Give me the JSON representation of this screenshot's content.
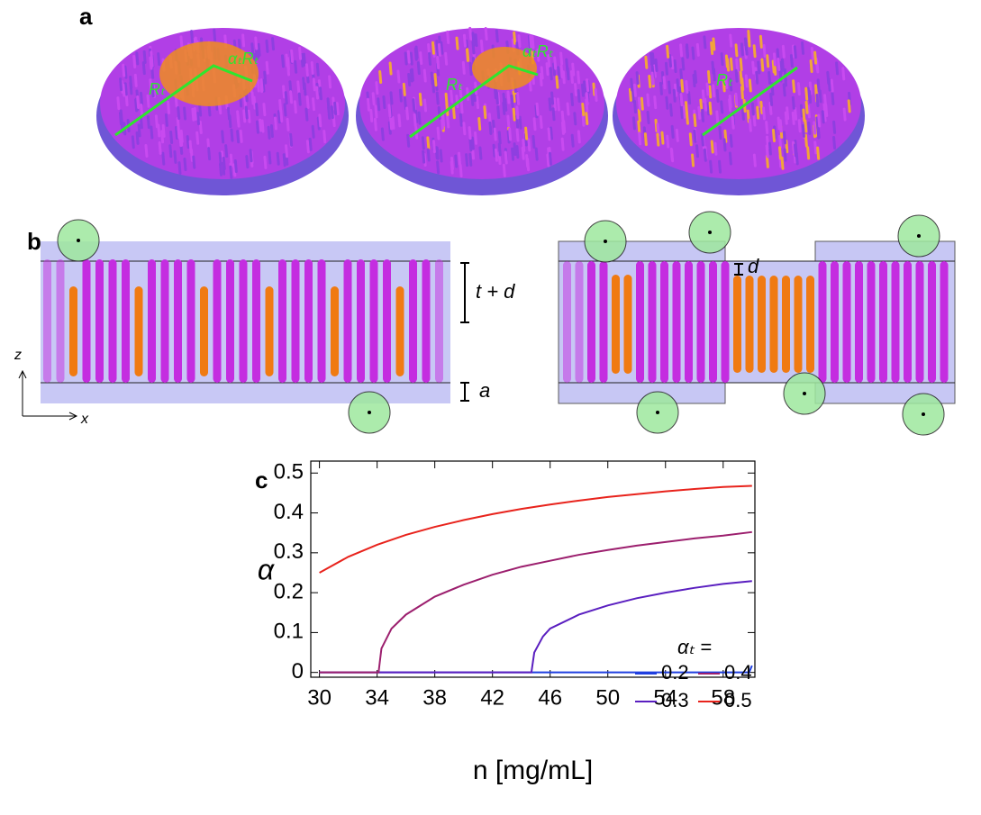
{
  "figure": {
    "panel_labels": [
      "a",
      "b",
      "c"
    ],
    "panel_a": {
      "labels": [
        "Rₜ",
        "αₜRₜ",
        "Rₜ",
        "αₜRₜ",
        "Rₜ"
      ]
    },
    "panel_b": {
      "labels": [
        "t + d",
        "a",
        "z",
        "x",
        "d"
      ]
    }
  },
  "chart_data": {
    "type": "line",
    "xlabel": "n [mg/mL]",
    "ylabel": "α",
    "legend_title": "αₜ =",
    "xlim": [
      29.4,
      60.2
    ],
    "ylim": [
      -0.012,
      0.53
    ],
    "xticks": [
      30,
      34,
      38,
      42,
      46,
      50,
      54,
      58
    ],
    "yticks": [
      0,
      0.1,
      0.2,
      0.3,
      0.4,
      0.5
    ],
    "series": [
      {
        "name": "0.2",
        "color": "#1f3fe0",
        "x": [
          30,
          59.8,
          60
        ],
        "values": [
          0,
          0,
          0.017
        ]
      },
      {
        "name": "0.3",
        "color": "#5a1fc0",
        "x": [
          30,
          44.7,
          44.9,
          45.5,
          46,
          48,
          50,
          52,
          54,
          56,
          58,
          60
        ],
        "values": [
          0,
          0,
          0.05,
          0.09,
          0.11,
          0.145,
          0.168,
          0.186,
          0.2,
          0.212,
          0.222,
          0.229
        ]
      },
      {
        "name": "0.4",
        "color": "#9c1f6e",
        "x": [
          30,
          34.1,
          34.3,
          35,
          36,
          38,
          40,
          42,
          44,
          46,
          48,
          50,
          52,
          54,
          56,
          58,
          60
        ],
        "values": [
          0,
          0,
          0.06,
          0.11,
          0.145,
          0.19,
          0.22,
          0.245,
          0.265,
          0.28,
          0.295,
          0.307,
          0.318,
          0.327,
          0.336,
          0.343,
          0.352
        ]
      },
      {
        "name": "0.5",
        "color": "#e8231c",
        "x": [
          30,
          32,
          34,
          36,
          38,
          40,
          42,
          44,
          46,
          48,
          50,
          52,
          54,
          56,
          58,
          60
        ],
        "values": [
          0.25,
          0.29,
          0.32,
          0.345,
          0.365,
          0.382,
          0.397,
          0.41,
          0.421,
          0.431,
          0.44,
          0.447,
          0.454,
          0.46,
          0.465,
          0.468
        ]
      }
    ]
  }
}
